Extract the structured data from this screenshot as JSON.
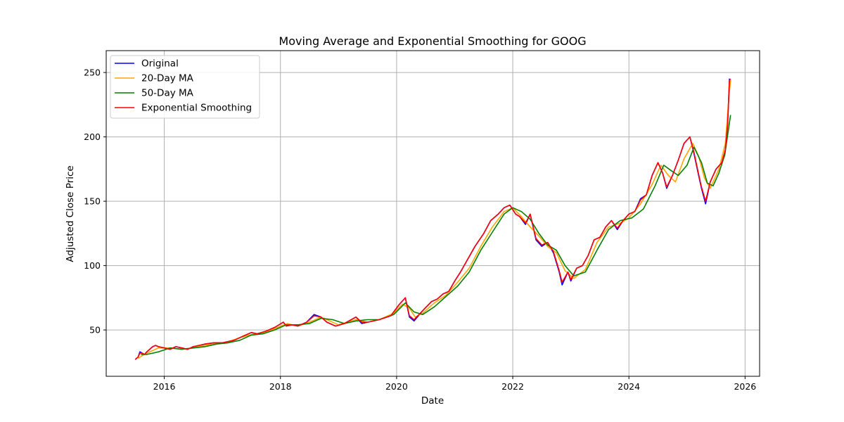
{
  "chart_data": {
    "type": "line",
    "title": "Moving Average and Exponential Smoothing for GOOG",
    "xlabel": "Date",
    "ylabel": "Adjusted Close Price",
    "xlim": [
      2015.0,
      2026.25
    ],
    "ylim": [
      14,
      267
    ],
    "xticks": [
      2016,
      2018,
      2020,
      2022,
      2024,
      2026
    ],
    "yticks": [
      50,
      100,
      150,
      200,
      250
    ],
    "grid": true,
    "legend_position": "top-left",
    "series": [
      {
        "name": "Original",
        "color": "#0000ff",
        "x": [
          2015.5,
          2015.55,
          2015.58,
          2015.62,
          2015.66,
          2015.7,
          2015.75,
          2015.8,
          2015.85,
          2015.9,
          2016.0,
          2016.1,
          2016.2,
          2016.3,
          2016.4,
          2016.5,
          2016.6,
          2016.7,
          2016.85,
          2017.0,
          2017.2,
          2017.4,
          2017.5,
          2017.6,
          2017.75,
          2017.9,
          2018.05,
          2018.1,
          2018.2,
          2018.3,
          2018.45,
          2018.58,
          2018.7,
          2018.8,
          2018.95,
          2019.1,
          2019.3,
          2019.4,
          2019.5,
          2019.7,
          2019.9,
          2020.05,
          2020.15,
          2020.22,
          2020.3,
          2020.45,
          2020.6,
          2020.7,
          2020.8,
          2020.9,
          2021.0,
          2021.1,
          2021.2,
          2021.35,
          2021.5,
          2021.62,
          2021.75,
          2021.85,
          2021.95,
          2022.05,
          2022.12,
          2022.22,
          2022.3,
          2022.4,
          2022.5,
          2022.6,
          2022.7,
          2022.8,
          2022.85,
          2022.95,
          2023.0,
          2023.1,
          2023.2,
          2023.3,
          2023.4,
          2023.5,
          2023.6,
          2023.7,
          2023.8,
          2023.9,
          2024.0,
          2024.1,
          2024.2,
          2024.3,
          2024.4,
          2024.5,
          2024.58,
          2024.65,
          2024.75,
          2024.85,
          2024.95,
          2025.05,
          2025.12,
          2025.2,
          2025.25,
          2025.32,
          2025.4,
          2025.5,
          2025.6,
          2025.66,
          2025.7,
          2025.73,
          2025.75
        ],
        "y": [
          27,
          29,
          33,
          32,
          31,
          33,
          35,
          37,
          38,
          37,
          36,
          35,
          37,
          36,
          35,
          37,
          38,
          39,
          40,
          40,
          42,
          46,
          48,
          47,
          49,
          52,
          56,
          53,
          54,
          53,
          56,
          62,
          60,
          56,
          53,
          55,
          60,
          55,
          56,
          58,
          61,
          70,
          75,
          60,
          57,
          65,
          72,
          74,
          78,
          80,
          88,
          95,
          103,
          115,
          125,
          135,
          140,
          145,
          147,
          140,
          138,
          132,
          140,
          120,
          115,
          118,
          110,
          95,
          85,
          95,
          88,
          98,
          100,
          108,
          120,
          122,
          130,
          135,
          128,
          135,
          140,
          142,
          152,
          155,
          170,
          180,
          172,
          160,
          170,
          182,
          195,
          200,
          187,
          170,
          160,
          148,
          165,
          175,
          180,
          190,
          210,
          245,
          243
        ]
      },
      {
        "name": "20-Day MA",
        "color": "#ffa500",
        "x": [
          2015.55,
          2015.62,
          2015.7,
          2015.8,
          2015.9,
          2016.1,
          2016.3,
          2016.5,
          2016.7,
          2016.85,
          2017.05,
          2017.3,
          2017.55,
          2017.75,
          2017.95,
          2018.12,
          2018.3,
          2018.5,
          2018.7,
          2018.85,
          2019.0,
          2019.3,
          2019.5,
          2019.7,
          2019.95,
          2020.1,
          2020.22,
          2020.32,
          2020.45,
          2020.65,
          2020.85,
          2021.05,
          2021.25,
          2021.45,
          2021.65,
          2021.85,
          2022.0,
          2022.15,
          2022.3,
          2022.45,
          2022.6,
          2022.75,
          2022.9,
          2023.05,
          2023.25,
          2023.45,
          2023.65,
          2023.85,
          2024.0,
          2024.2,
          2024.4,
          2024.55,
          2024.68,
          2024.8,
          2024.95,
          2025.1,
          2025.2,
          2025.3,
          2025.4,
          2025.55,
          2025.66,
          2025.72,
          2025.75
        ],
        "y": [
          28,
          30,
          32,
          34,
          36,
          36,
          35,
          36,
          38,
          39,
          40,
          44,
          47,
          48,
          52,
          55,
          53,
          56,
          60,
          57,
          54,
          58,
          56,
          58,
          63,
          70,
          67,
          60,
          63,
          71,
          77,
          87,
          98,
          115,
          130,
          142,
          145,
          138,
          130,
          123,
          115,
          110,
          96,
          90,
          97,
          118,
          130,
          133,
          137,
          148,
          163,
          178,
          170,
          165,
          183,
          195,
          185,
          168,
          160,
          175,
          195,
          230,
          244
        ]
      },
      {
        "name": "50-Day MA",
        "color": "#008000",
        "x": [
          2015.6,
          2015.7,
          2015.8,
          2015.9,
          2016.1,
          2016.3,
          2016.5,
          2016.7,
          2016.9,
          2017.1,
          2017.3,
          2017.5,
          2017.7,
          2017.9,
          2018.1,
          2018.3,
          2018.5,
          2018.7,
          2018.9,
          2019.1,
          2019.3,
          2019.5,
          2019.7,
          2019.95,
          2020.15,
          2020.3,
          2020.45,
          2020.65,
          2020.85,
          2021.05,
          2021.25,
          2021.45,
          2021.65,
          2021.85,
          2022.0,
          2022.15,
          2022.3,
          2022.45,
          2022.6,
          2022.75,
          2022.9,
          2023.05,
          2023.25,
          2023.45,
          2023.65,
          2023.85,
          2024.05,
          2024.25,
          2024.45,
          2024.6,
          2024.72,
          2024.85,
          2025.0,
          2025.12,
          2025.25,
          2025.35,
          2025.45,
          2025.55,
          2025.65,
          2025.75
        ],
        "y": [
          31,
          31,
          32,
          33,
          36,
          35,
          36,
          37,
          39,
          40,
          42,
          46,
          47,
          50,
          54,
          54,
          55,
          59,
          58,
          55,
          57,
          58,
          58,
          62,
          71,
          64,
          62,
          68,
          76,
          84,
          95,
          112,
          126,
          140,
          145,
          142,
          136,
          125,
          116,
          112,
          100,
          92,
          95,
          112,
          128,
          135,
          137,
          144,
          162,
          178,
          174,
          170,
          178,
          192,
          180,
          164,
          162,
          172,
          186,
          217
        ]
      },
      {
        "name": "Exponential Smoothing",
        "color": "#ff0000",
        "x": [
          2015.5,
          2015.55,
          2015.58,
          2015.62,
          2015.66,
          2015.7,
          2015.75,
          2015.8,
          2015.85,
          2015.9,
          2016.0,
          2016.1,
          2016.2,
          2016.3,
          2016.4,
          2016.5,
          2016.6,
          2016.7,
          2016.85,
          2017.0,
          2017.2,
          2017.4,
          2017.5,
          2017.6,
          2017.75,
          2017.9,
          2018.05,
          2018.1,
          2018.2,
          2018.3,
          2018.45,
          2018.58,
          2018.7,
          2018.8,
          2018.95,
          2019.1,
          2019.3,
          2019.4,
          2019.5,
          2019.7,
          2019.9,
          2020.05,
          2020.15,
          2020.22,
          2020.3,
          2020.45,
          2020.6,
          2020.7,
          2020.8,
          2020.9,
          2021.0,
          2021.1,
          2021.2,
          2021.35,
          2021.5,
          2021.62,
          2021.75,
          2021.85,
          2021.95,
          2022.05,
          2022.12,
          2022.22,
          2022.3,
          2022.4,
          2022.5,
          2022.6,
          2022.7,
          2022.8,
          2022.85,
          2022.95,
          2023.0,
          2023.1,
          2023.2,
          2023.3,
          2023.4,
          2023.5,
          2023.6,
          2023.7,
          2023.8,
          2023.9,
          2024.0,
          2024.1,
          2024.2,
          2024.3,
          2024.4,
          2024.5,
          2024.58,
          2024.65,
          2024.75,
          2024.85,
          2024.95,
          2025.05,
          2025.12,
          2025.2,
          2025.25,
          2025.32,
          2025.4,
          2025.5,
          2025.6,
          2025.66,
          2025.7,
          2025.73,
          2025.75
        ],
        "y": [
          27,
          29,
          32,
          32,
          31,
          33,
          35,
          37,
          38,
          37,
          36,
          35,
          37,
          36,
          35,
          37,
          38,
          39,
          40,
          40,
          42,
          46,
          48,
          47,
          49,
          52,
          56,
          53,
          54,
          53,
          56,
          61,
          60,
          56,
          53,
          55,
          60,
          56,
          56,
          58,
          61,
          70,
          75,
          61,
          58,
          65,
          72,
          74,
          78,
          80,
          88,
          95,
          103,
          115,
          125,
          135,
          140,
          145,
          147,
          140,
          138,
          133,
          140,
          121,
          116,
          118,
          111,
          96,
          87,
          95,
          89,
          98,
          100,
          108,
          120,
          122,
          130,
          135,
          129,
          135,
          140,
          142,
          151,
          155,
          170,
          180,
          172,
          161,
          170,
          182,
          195,
          200,
          188,
          171,
          161,
          150,
          165,
          175,
          180,
          190,
          210,
          244,
          245
        ]
      }
    ]
  }
}
